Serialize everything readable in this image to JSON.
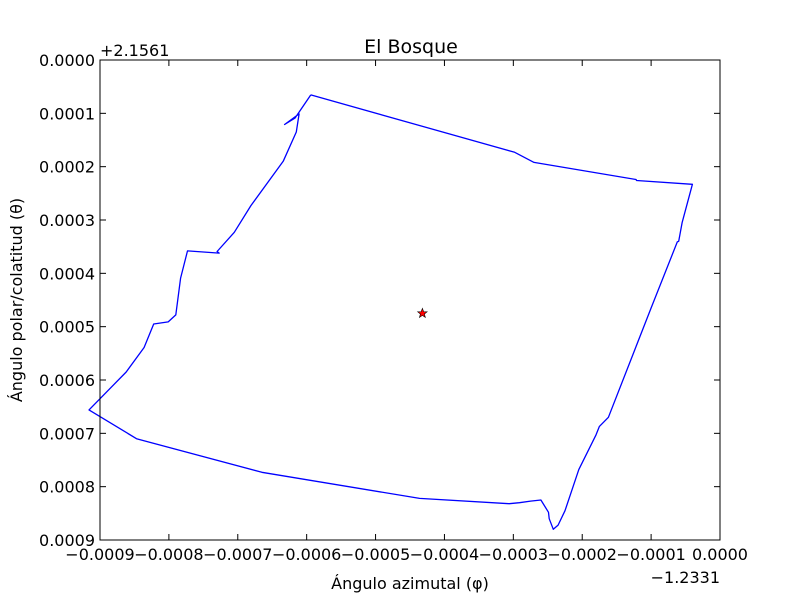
{
  "chart_data": {
    "type": "line",
    "title": "El Bosque",
    "xlabel": "Ángulo azimutal (φ)",
    "ylabel": "Ángulo polar/colatitud (θ)",
    "x_offset_label": "−1.2331",
    "y_offset_label": "+2.1561",
    "xlim": [
      -0.0009,
      0.0
    ],
    "ylim": [
      0.0009,
      0.0
    ],
    "y_inverted": true,
    "grid": false,
    "x_ticks": [
      -0.0009,
      -0.0008,
      -0.0007,
      -0.0006,
      -0.0005,
      -0.0004,
      -0.0003,
      -0.0002,
      -0.0001,
      0.0
    ],
    "x_tick_labels": [
      "−0.0009",
      "−0.0008",
      "−0.0007",
      "−0.0006",
      "−0.0005",
      "−0.0004",
      "−0.0003",
      "−0.0002",
      "−0.0001",
      "0.0000"
    ],
    "y_ticks": [
      0.0,
      0.0001,
      0.0002,
      0.0003,
      0.0004,
      0.0005,
      0.0006,
      0.0007,
      0.0008,
      0.0009
    ],
    "y_tick_labels": [
      "0.0000",
      "0.0001",
      "0.0002",
      "0.0003",
      "0.0004",
      "0.0005",
      "0.0006",
      "0.0007",
      "0.0008",
      "0.0009"
    ],
    "series": [
      {
        "kind": "line",
        "color": "#0000ff",
        "x": [
          -0.000594,
          -0.000298,
          -0.00027,
          -0.000122,
          -0.000121,
          -4e-05,
          -5.5e-05,
          -6e-05,
          -6.2e-05,
          -0.0001,
          -0.000162,
          -0.000175,
          -0.00018,
          -0.000205,
          -0.000225,
          -0.000235,
          -0.000242,
          -0.000248,
          -0.000249,
          -0.00026,
          -0.000275,
          -0.000291,
          -0.000306,
          -0.000436,
          -0.000665,
          -0.000847,
          -0.000916,
          -0.000862,
          -0.000836,
          -0.000822,
          -0.000801,
          -0.00079,
          -0.000783,
          -0.000773,
          -0.000727,
          -0.00073,
          -0.000705,
          -0.000681,
          -0.000634,
          -0.000615,
          -0.000611,
          -0.000632,
          -0.000617,
          -0.000594
        ],
        "y": [
          6.55e-05,
          0.000173,
          0.000192,
          0.000224,
          0.000226,
          0.000233,
          0.000305,
          0.00034,
          0.000341,
          0.000465,
          0.00067,
          0.000687,
          0.000703,
          0.000768,
          0.000845,
          0.000872,
          0.00088,
          0.00086,
          0.000848,
          0.000825,
          0.000827,
          0.00083,
          0.000832,
          0.000822,
          0.000773,
          0.00071,
          0.000656,
          0.000585,
          0.000539,
          0.000495,
          0.000491,
          0.000478,
          0.000409,
          0.000358,
          0.000362,
          0.000359,
          0.000323,
          0.000273,
          0.00019,
          0.000135,
          0.000101,
          0.000121,
          0.000109,
          6.55e-05
        ]
      },
      {
        "kind": "marker",
        "marker": "star",
        "color": "#ff0000",
        "x": [
          -0.000432
        ],
        "y": [
          0.000475
        ]
      }
    ]
  }
}
